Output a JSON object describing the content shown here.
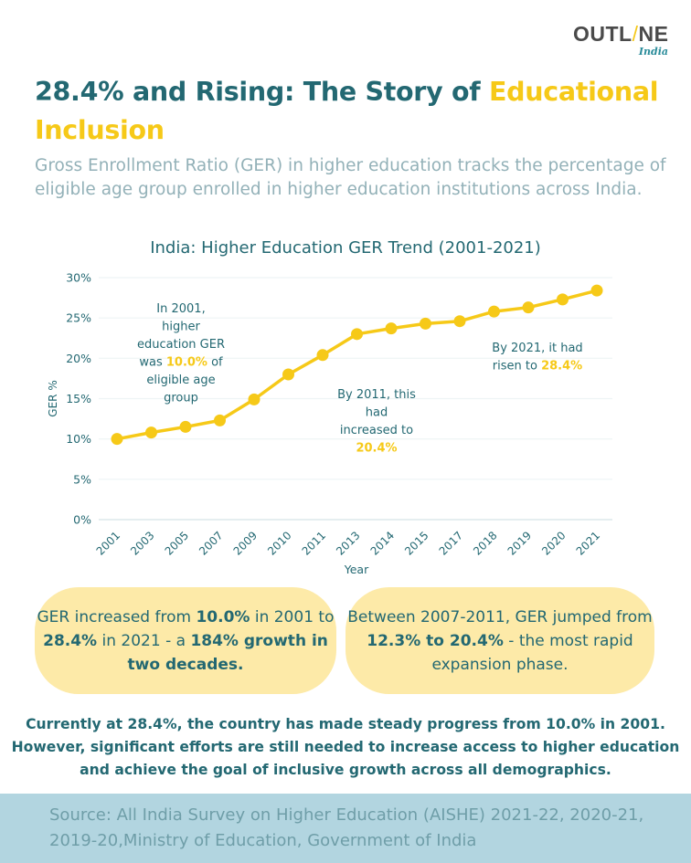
{
  "brand": {
    "name_part1": "OUTL",
    "name_slash": "/",
    "name_part2": "NE",
    "sub": "India"
  },
  "header": {
    "title_main": "28.4% and Rising: The Story of ",
    "title_highlight": "Educational Inclusion",
    "subtitle": "Gross Enrollment Ratio (GER) in higher education tracks the percentage of eligible age group enrolled in higher education institutions across India."
  },
  "colors": {
    "primary": "#236872",
    "accent": "#f6c918",
    "callout_bg": "#fdeaa8",
    "footer_bg": "#b2d5e0",
    "muted": "#93b1b8"
  },
  "chart_data": {
    "type": "line",
    "title": "India: Higher Education GER Trend (2001-2021)",
    "xlabel": "Year",
    "ylabel": "GER %",
    "ylim": [
      0,
      30
    ],
    "yticks": [
      0,
      5,
      10,
      15,
      20,
      25,
      30
    ],
    "ytick_labels": [
      "0%",
      "5%",
      "10%",
      "15%",
      "20%",
      "25%",
      "30%"
    ],
    "grid": true,
    "categories": [
      "2001",
      "2003",
      "2005",
      "2007",
      "2009",
      "2010",
      "2011",
      "2013",
      "2014",
      "2015",
      "2017",
      "2018",
      "2019",
      "2020",
      "2021"
    ],
    "series": [
      {
        "name": "GER",
        "color": "#f6c918",
        "values": [
          10.0,
          10.8,
          11.5,
          12.3,
          14.9,
          18.0,
          20.4,
          23.0,
          23.7,
          24.3,
          24.6,
          25.8,
          26.3,
          27.3,
          28.4
        ]
      }
    ],
    "annotations": [
      {
        "lines": [
          "In 2001,",
          "higher",
          "education GER",
          "was |10.0%| of",
          "eligible age",
          "group"
        ]
      },
      {
        "lines": [
          "By 2011, this",
          "had",
          "increased to",
          "|20.4%|"
        ]
      },
      {
        "lines": [
          "By 2021, it had",
          "risen to |28.4%|"
        ]
      }
    ]
  },
  "callouts": [
    {
      "parts": [
        {
          "t": "GER increased from ",
          "b": false
        },
        {
          "t": "10.0%",
          "b": true
        },
        {
          "t": " in 2001 to ",
          "b": false
        },
        {
          "t": "28.4%",
          "b": true
        },
        {
          "t": " in 2021 - a ",
          "b": false
        },
        {
          "t": "184% growth in two decades.",
          "b": true
        }
      ]
    },
    {
      "parts": [
        {
          "t": "Between 2007-2011, GER jumped from ",
          "b": false
        },
        {
          "t": "12.3% to 20.4%",
          "b": true
        },
        {
          "t": " - the most rapid expansion phase.",
          "b": false
        }
      ]
    }
  ],
  "conclusion": "Currently at 28.4%, the country has made steady progress from 10.0% in 2001. However, significant efforts are still needed to increase access to higher education and achieve the goal of inclusive growth across all demographics.",
  "footer": {
    "source": "Source: All India Survey on Higher Education (AISHE) 2021-22, 2020-21, 2019-20,Ministry of Education, Government of India"
  }
}
